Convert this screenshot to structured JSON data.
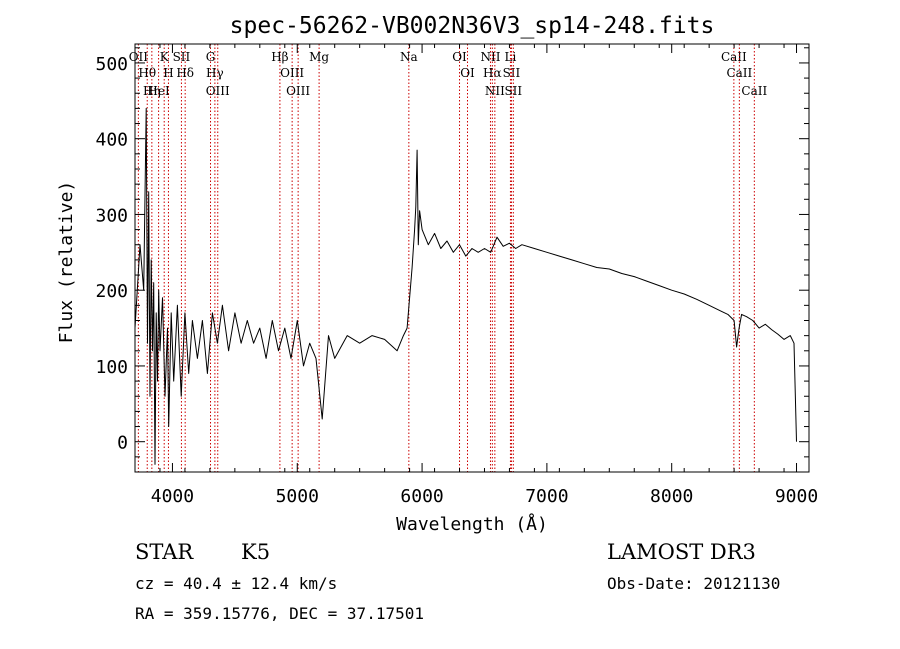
{
  "chart_data": {
    "type": "line",
    "title": "spec-56262-VB002N36V3_sp14-248.fits",
    "xlabel": "Wavelength (Å)",
    "ylabel": "Flux (relative)",
    "xlim": [
      3700,
      9100
    ],
    "ylim": [
      -40,
      525
    ],
    "xticks": [
      4000,
      5000,
      6000,
      7000,
      8000,
      9000
    ],
    "xtick_labels": [
      "4000",
      "5000",
      "6000",
      "7000",
      "8000",
      "9000"
    ],
    "yticks": [
      0,
      100,
      200,
      300,
      400,
      500
    ],
    "ytick_labels": [
      "0",
      "100",
      "200",
      "300",
      "400",
      "500"
    ],
    "series": [
      {
        "name": "spectrum",
        "x": [
          3700,
          3740,
          3770,
          3790,
          3800,
          3810,
          3820,
          3830,
          3840,
          3850,
          3860,
          3870,
          3880,
          3890,
          3900,
          3920,
          3940,
          3960,
          3970,
          3990,
          4010,
          4040,
          4070,
          4100,
          4130,
          4160,
          4200,
          4240,
          4280,
          4320,
          4360,
          4400,
          4450,
          4500,
          4550,
          4600,
          4650,
          4700,
          4750,
          4800,
          4850,
          4900,
          4950,
          5000,
          5050,
          5100,
          5150,
          5200,
          5250,
          5300,
          5400,
          5500,
          5600,
          5700,
          5800,
          5850,
          5880,
          5900,
          5920,
          5940,
          5950,
          5960,
          5970,
          5980,
          6000,
          6050,
          6100,
          6150,
          6200,
          6250,
          6300,
          6350,
          6400,
          6450,
          6500,
          6550,
          6600,
          6650,
          6700,
          6750,
          6800,
          6900,
          7000,
          7100,
          7200,
          7300,
          7400,
          7500,
          7600,
          7700,
          7800,
          7900,
          8000,
          8100,
          8200,
          8300,
          8400,
          8450,
          8500,
          8520,
          8540,
          8560,
          8600,
          8650,
          8700,
          8750,
          8800,
          8850,
          8900,
          8950,
          8980,
          9000
        ],
        "y": [
          150,
          260,
          200,
          440,
          130,
          330,
          60,
          240,
          120,
          210,
          -30,
          170,
          80,
          200,
          120,
          190,
          60,
          150,
          20,
          170,
          80,
          180,
          60,
          170,
          90,
          160,
          110,
          160,
          90,
          170,
          130,
          180,
          120,
          170,
          130,
          160,
          130,
          150,
          110,
          160,
          120,
          150,
          110,
          160,
          100,
          130,
          110,
          30,
          140,
          110,
          140,
          130,
          140,
          135,
          120,
          140,
          150,
          190,
          230,
          280,
          310,
          385,
          260,
          305,
          280,
          260,
          275,
          255,
          265,
          250,
          260,
          245,
          255,
          250,
          255,
          250,
          270,
          258,
          262,
          255,
          260,
          255,
          250,
          245,
          240,
          235,
          230,
          228,
          222,
          218,
          212,
          206,
          200,
          195,
          188,
          180,
          172,
          168,
          160,
          125,
          150,
          168,
          165,
          160,
          150,
          155,
          148,
          142,
          135,
          140,
          130,
          0
        ]
      }
    ],
    "lines": [
      {
        "name": "OII",
        "x": 3727,
        "label": "OII"
      },
      {
        "name": "Hθ",
        "x": 3798,
        "label": "Hθ"
      },
      {
        "name": "Hη",
        "x": 3835,
        "label": "Hη"
      },
      {
        "name": "HeI",
        "x": 3889,
        "label": "HeI"
      },
      {
        "name": "K",
        "x": 3934,
        "label": "K"
      },
      {
        "name": "H",
        "x": 3968,
        "label": "H"
      },
      {
        "name": "SII",
        "x": 4072,
        "label": "SII"
      },
      {
        "name": "Hδ",
        "x": 4102,
        "label": "Hδ"
      },
      {
        "name": "G",
        "x": 4305,
        "label": "G"
      },
      {
        "name": "Hγ",
        "x": 4340,
        "label": "Hγ"
      },
      {
        "name": "OIII",
        "x": 4363,
        "label": "OIII"
      },
      {
        "name": "Hβ",
        "x": 4861,
        "label": "Hβ"
      },
      {
        "name": "OIII",
        "x": 4959,
        "label": "OIII"
      },
      {
        "name": "OIII",
        "x": 5007,
        "label": "OIII"
      },
      {
        "name": "Mg",
        "x": 5175,
        "label": "Mg"
      },
      {
        "name": "Na",
        "x": 5894,
        "label": "Na"
      },
      {
        "name": "OI",
        "x": 6300,
        "label": "OI"
      },
      {
        "name": "OI",
        "x": 6364,
        "label": "OI"
      },
      {
        "name": "NII",
        "x": 6548,
        "label": "NII"
      },
      {
        "name": "Hα",
        "x": 6563,
        "label": "Hα"
      },
      {
        "name": "NII",
        "x": 6583,
        "label": "NII"
      },
      {
        "name": "Li",
        "x": 6708,
        "label": "Li"
      },
      {
        "name": "SII",
        "x": 6716,
        "label": "SII"
      },
      {
        "name": "SII",
        "x": 6731,
        "label": "SII"
      },
      {
        "name": "CaII",
        "x": 8498,
        "label": "CaII"
      },
      {
        "name": "CaII",
        "x": 8542,
        "label": "CaII"
      },
      {
        "name": "CaII",
        "x": 8662,
        "label": "CaII"
      }
    ],
    "line_color": "#000000",
    "marker_color": "#cc0000"
  },
  "info": {
    "class": "STAR",
    "subclass": "K5",
    "survey": "LAMOST DR3",
    "cz": "cz = 40.4 ± 12.4 km/s",
    "obs_date": "Obs-Date: 20121130",
    "coords": "RA = 359.15776, DEC =  37.17501"
  }
}
